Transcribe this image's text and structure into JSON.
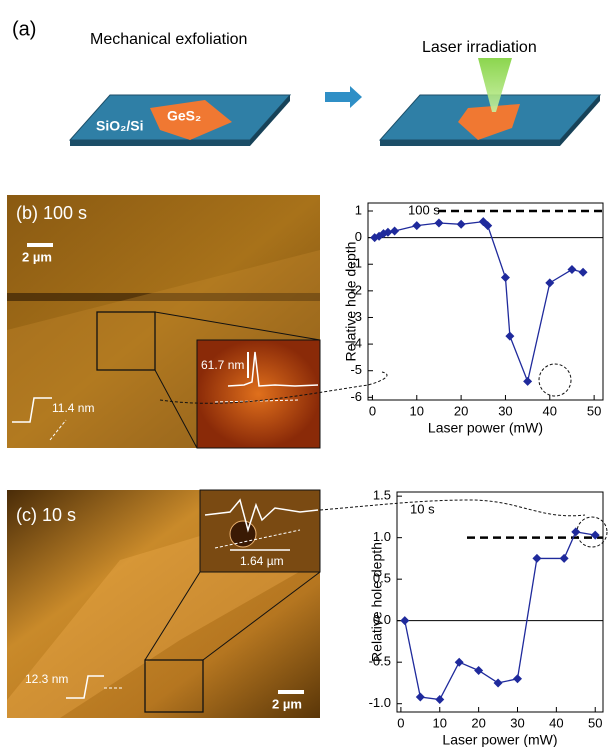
{
  "panel_a": {
    "label": "(a)",
    "left_title": "Mechanical exfoliation",
    "right_title": "Laser irradiation",
    "flake": "GeS₂",
    "substrate": "SiO₂/Si"
  },
  "panel_b_image": {
    "label": "(b) 100 s",
    "scale": "2 µm",
    "inset_height": "61.7 nm",
    "step_height": "11.4 nm"
  },
  "panel_c_image": {
    "label": "(c) 10 s",
    "scale": "2 µm",
    "inset_width": "1.64 µm",
    "step_height": "12.3 nm"
  },
  "chart_data": [
    {
      "type": "line",
      "annotation": "100 s",
      "x_label": "Laser power (mW)",
      "y_label": "Relative hole depth",
      "x": [
        0.5,
        1.5,
        2.5,
        3.5,
        5,
        10,
        15,
        20,
        25,
        26,
        30,
        31,
        35,
        40,
        45,
        47.5
      ],
      "values": [
        0,
        0.05,
        0.15,
        0.2,
        0.25,
        0.45,
        0.55,
        0.5,
        0.6,
        0.45,
        -1.5,
        -3.7,
        -5.4,
        -1.7,
        -1.2,
        -1.3
      ],
      "color": "#1f2a9c",
      "ref_line": 1,
      "xlim": [
        -1,
        52
      ],
      "xticks": [
        0,
        10,
        20,
        30,
        40,
        50
      ],
      "ylim": [
        -6.1,
        1.3
      ],
      "yticks": [
        -6,
        -5,
        -4,
        -3,
        -2,
        -1,
        0,
        1
      ]
    },
    {
      "type": "line",
      "annotation": "10 s",
      "x_label": "Laser power (mW)",
      "y_label": "Relative hole depth",
      "x": [
        1,
        5,
        10,
        15,
        20,
        25,
        30,
        35,
        42,
        45,
        50
      ],
      "values": [
        0,
        -0.92,
        -0.95,
        -0.5,
        -0.6,
        -0.75,
        -0.7,
        0.75,
        0.75,
        1.07,
        1.03
      ],
      "color": "#1f2a9c",
      "ref_line": 1,
      "xlim": [
        -1,
        52
      ],
      "xticks": [
        0,
        10,
        20,
        30,
        40,
        50
      ],
      "ylim": [
        -1.1,
        1.55
      ],
      "yticks": [
        {
          "value": -1,
          "label": "-1.0"
        },
        {
          "value": -0.5,
          "label": "-0.5"
        },
        {
          "value": 0,
          "label": "0.0"
        },
        {
          "value": 0.5,
          "label": "0.5"
        },
        {
          "value": 1,
          "label": "1.0"
        },
        {
          "value": 1.5,
          "label": "1.5"
        }
      ]
    }
  ]
}
